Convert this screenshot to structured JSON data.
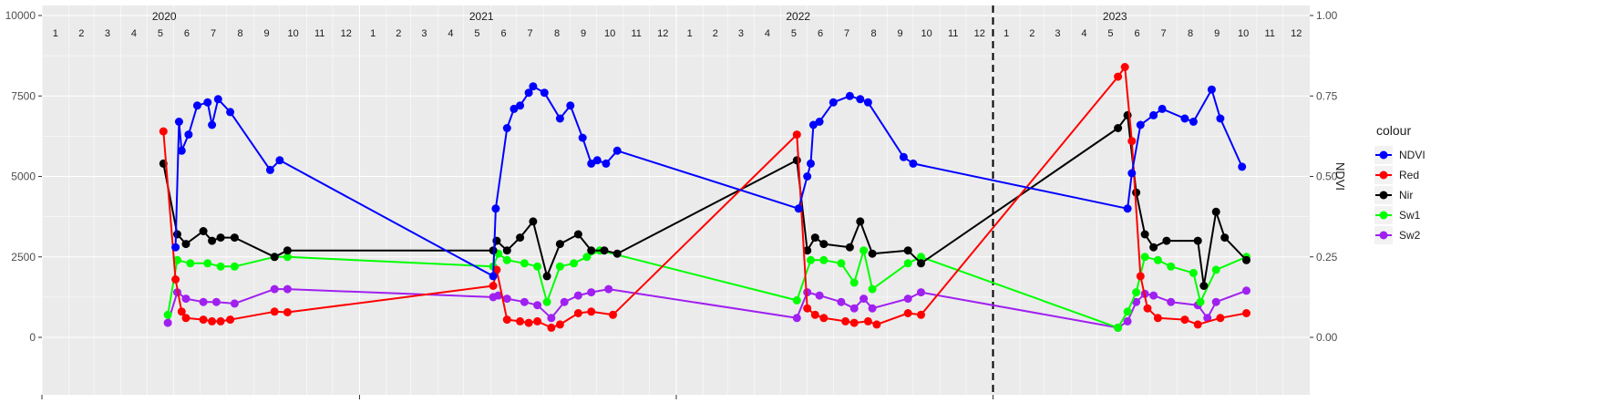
{
  "chart_data": {
    "type": "line",
    "title": "",
    "xlabel": "",
    "ylabel": "",
    "y2label": "NDVI",
    "ylim": [
      0,
      10000
    ],
    "y2lim": [
      0,
      1
    ],
    "y_ticks": [
      "0",
      "2500",
      "5000",
      "7500",
      "10000"
    ],
    "y2_ticks": [
      "0.00",
      "0.25",
      "0.50",
      "0.75",
      "1.00"
    ],
    "x_range": [
      "2020-01-01",
      "2023-12-31"
    ],
    "year_labels": [
      {
        "year": 2020,
        "text": "2020"
      },
      {
        "year": 2021,
        "text": "2021"
      },
      {
        "year": 2022,
        "text": "2022"
      },
      {
        "year": 2023,
        "text": "2023"
      }
    ],
    "month_labels": [
      "1",
      "2",
      "3",
      "4",
      "5",
      "6",
      "7",
      "8",
      "9",
      "10",
      "11",
      "12"
    ],
    "vline_date": "2023-01-01",
    "grid": true,
    "legend": {
      "title": "colour",
      "position": "right"
    },
    "series": [
      {
        "name": "NDVI",
        "color": "#0000ff",
        "axis": "right",
        "points": [
          [
            "2020-06-03",
            0.28
          ],
          [
            "2020-06-07",
            0.67
          ],
          [
            "2020-06-10",
            0.58
          ],
          [
            "2020-06-18",
            0.63
          ],
          [
            "2020-06-28",
            0.72
          ],
          [
            "2020-07-10",
            0.73
          ],
          [
            "2020-07-15",
            0.66
          ],
          [
            "2020-07-22",
            0.74
          ],
          [
            "2020-08-05",
            0.7
          ],
          [
            "2020-09-20",
            0.52
          ],
          [
            "2020-10-01",
            0.55
          ],
          [
            "2021-06-04",
            0.19
          ],
          [
            "2021-06-07",
            0.4
          ],
          [
            "2021-06-20",
            0.65
          ],
          [
            "2021-06-28",
            0.71
          ],
          [
            "2021-07-05",
            0.72
          ],
          [
            "2021-07-15",
            0.76
          ],
          [
            "2021-07-20",
            0.78
          ],
          [
            "2021-08-02",
            0.76
          ],
          [
            "2021-08-20",
            0.68
          ],
          [
            "2021-09-01",
            0.72
          ],
          [
            "2021-09-15",
            0.62
          ],
          [
            "2021-09-25",
            0.54
          ],
          [
            "2021-10-02",
            0.55
          ],
          [
            "2021-10-12",
            0.54
          ],
          [
            "2021-10-25",
            0.58
          ],
          [
            "2022-05-22",
            0.4
          ],
          [
            "2022-06-01",
            0.5
          ],
          [
            "2022-06-05",
            0.54
          ],
          [
            "2022-06-08",
            0.66
          ],
          [
            "2022-06-15",
            0.67
          ],
          [
            "2022-07-01",
            0.73
          ],
          [
            "2022-07-20",
            0.75
          ],
          [
            "2022-08-01",
            0.74
          ],
          [
            "2022-08-10",
            0.73
          ],
          [
            "2022-09-20",
            0.56
          ],
          [
            "2022-10-01",
            0.54
          ],
          [
            "2023-06-05",
            0.4
          ],
          [
            "2023-06-10",
            0.51
          ],
          [
            "2023-06-20",
            0.66
          ],
          [
            "2023-07-05",
            0.69
          ],
          [
            "2023-07-15",
            0.71
          ],
          [
            "2023-08-10",
            0.68
          ],
          [
            "2023-08-20",
            0.67
          ],
          [
            "2023-09-10",
            0.77
          ],
          [
            "2023-09-20",
            0.68
          ],
          [
            "2023-10-15",
            0.53
          ]
        ]
      },
      {
        "name": "Red",
        "color": "#ff0000",
        "axis": "left",
        "points": [
          [
            "2020-05-20",
            6400
          ],
          [
            "2020-06-03",
            1800
          ],
          [
            "2020-06-10",
            800
          ],
          [
            "2020-06-15",
            600
          ],
          [
            "2020-07-05",
            550
          ],
          [
            "2020-07-15",
            500
          ],
          [
            "2020-07-25",
            500
          ],
          [
            "2020-08-05",
            550
          ],
          [
            "2020-09-25",
            800
          ],
          [
            "2020-10-10",
            780
          ],
          [
            "2021-06-04",
            1600
          ],
          [
            "2021-06-08",
            2100
          ],
          [
            "2021-06-20",
            550
          ],
          [
            "2021-07-05",
            500
          ],
          [
            "2021-07-15",
            450
          ],
          [
            "2021-07-25",
            500
          ],
          [
            "2021-08-10",
            300
          ],
          [
            "2021-08-20",
            400
          ],
          [
            "2021-09-10",
            750
          ],
          [
            "2021-09-25",
            800
          ],
          [
            "2021-10-20",
            700
          ],
          [
            "2022-05-20",
            6300
          ],
          [
            "2022-06-01",
            900
          ],
          [
            "2022-06-10",
            700
          ],
          [
            "2022-06-20",
            600
          ],
          [
            "2022-07-15",
            500
          ],
          [
            "2022-07-25",
            450
          ],
          [
            "2022-08-10",
            500
          ],
          [
            "2022-08-20",
            400
          ],
          [
            "2022-09-25",
            750
          ],
          [
            "2022-10-10",
            700
          ],
          [
            "2023-05-25",
            8100
          ],
          [
            "2023-06-02",
            8400
          ],
          [
            "2023-06-10",
            6100
          ],
          [
            "2023-06-20",
            1900
          ],
          [
            "2023-06-28",
            900
          ],
          [
            "2023-07-10",
            600
          ],
          [
            "2023-08-10",
            550
          ],
          [
            "2023-08-25",
            400
          ],
          [
            "2023-09-20",
            600
          ],
          [
            "2023-10-20",
            750
          ]
        ]
      },
      {
        "name": "Nir",
        "color": "#000000",
        "axis": "left",
        "points": [
          [
            "2020-05-20",
            5400
          ],
          [
            "2020-06-05",
            3200
          ],
          [
            "2020-06-15",
            2900
          ],
          [
            "2020-07-05",
            3300
          ],
          [
            "2020-07-15",
            3000
          ],
          [
            "2020-07-25",
            3100
          ],
          [
            "2020-08-10",
            3100
          ],
          [
            "2020-09-25",
            2500
          ],
          [
            "2020-10-10",
            2700
          ],
          [
            "2021-06-04",
            2700
          ],
          [
            "2021-06-08",
            3000
          ],
          [
            "2021-06-20",
            2700
          ],
          [
            "2021-07-05",
            3100
          ],
          [
            "2021-07-20",
            3600
          ],
          [
            "2021-08-05",
            1900
          ],
          [
            "2021-08-20",
            2900
          ],
          [
            "2021-09-10",
            3200
          ],
          [
            "2021-09-25",
            2700
          ],
          [
            "2021-10-10",
            2700
          ],
          [
            "2021-10-25",
            2600
          ],
          [
            "2022-05-20",
            5500
          ],
          [
            "2022-06-01",
            2700
          ],
          [
            "2022-06-10",
            3100
          ],
          [
            "2022-06-20",
            2900
          ],
          [
            "2022-07-20",
            2800
          ],
          [
            "2022-08-01",
            3600
          ],
          [
            "2022-08-15",
            2600
          ],
          [
            "2022-09-25",
            2700
          ],
          [
            "2022-10-10",
            2300
          ],
          [
            "2023-05-25",
            6500
          ],
          [
            "2023-06-05",
            6900
          ],
          [
            "2023-06-15",
            4500
          ],
          [
            "2023-06-25",
            3200
          ],
          [
            "2023-07-05",
            2800
          ],
          [
            "2023-07-20",
            3000
          ],
          [
            "2023-08-25",
            3000
          ],
          [
            "2023-09-01",
            1600
          ],
          [
            "2023-09-15",
            3900
          ],
          [
            "2023-09-25",
            3100
          ],
          [
            "2023-10-20",
            2400
          ]
        ]
      },
      {
        "name": "Sw1",
        "color": "#00ff00",
        "axis": "left",
        "points": [
          [
            "2020-05-25",
            700
          ],
          [
            "2020-06-05",
            2400
          ],
          [
            "2020-06-20",
            2300
          ],
          [
            "2020-07-10",
            2300
          ],
          [
            "2020-07-25",
            2200
          ],
          [
            "2020-08-10",
            2200
          ],
          [
            "2020-09-25",
            2500
          ],
          [
            "2020-10-10",
            2500
          ],
          [
            "2021-06-04",
            2200
          ],
          [
            "2021-06-10",
            2600
          ],
          [
            "2021-06-20",
            2400
          ],
          [
            "2021-07-10",
            2300
          ],
          [
            "2021-07-25",
            2200
          ],
          [
            "2021-08-05",
            1100
          ],
          [
            "2021-08-20",
            2200
          ],
          [
            "2021-09-05",
            2300
          ],
          [
            "2021-09-20",
            2500
          ],
          [
            "2021-10-05",
            2700
          ],
          [
            "2022-05-20",
            1150
          ],
          [
            "2022-06-05",
            2400
          ],
          [
            "2022-06-20",
            2400
          ],
          [
            "2022-07-10",
            2300
          ],
          [
            "2022-07-25",
            1700
          ],
          [
            "2022-08-05",
            2700
          ],
          [
            "2022-08-15",
            1500
          ],
          [
            "2022-09-25",
            2300
          ],
          [
            "2022-10-10",
            2500
          ],
          [
            "2023-05-25",
            300
          ],
          [
            "2023-06-05",
            800
          ],
          [
            "2023-06-15",
            1400
          ],
          [
            "2023-06-25",
            2500
          ],
          [
            "2023-07-10",
            2400
          ],
          [
            "2023-07-25",
            2200
          ],
          [
            "2023-08-20",
            2000
          ],
          [
            "2023-08-28",
            1100
          ],
          [
            "2023-09-15",
            2100
          ],
          [
            "2023-10-20",
            2500
          ]
        ]
      },
      {
        "name": "Sw2",
        "color": "#a020f0",
        "axis": "left",
        "points": [
          [
            "2020-05-25",
            450
          ],
          [
            "2020-06-05",
            1400
          ],
          [
            "2020-06-15",
            1200
          ],
          [
            "2020-07-05",
            1100
          ],
          [
            "2020-07-20",
            1100
          ],
          [
            "2020-08-10",
            1050
          ],
          [
            "2020-09-25",
            1500
          ],
          [
            "2020-10-10",
            1500
          ],
          [
            "2021-06-04",
            1250
          ],
          [
            "2021-06-10",
            1300
          ],
          [
            "2021-06-20",
            1200
          ],
          [
            "2021-07-10",
            1100
          ],
          [
            "2021-07-25",
            1000
          ],
          [
            "2021-08-10",
            600
          ],
          [
            "2021-08-25",
            1100
          ],
          [
            "2021-09-10",
            1300
          ],
          [
            "2021-09-25",
            1400
          ],
          [
            "2021-10-15",
            1500
          ],
          [
            "2022-05-20",
            600
          ],
          [
            "2022-06-01",
            1400
          ],
          [
            "2022-06-15",
            1300
          ],
          [
            "2022-07-10",
            1100
          ],
          [
            "2022-07-25",
            900
          ],
          [
            "2022-08-05",
            1200
          ],
          [
            "2022-08-15",
            900
          ],
          [
            "2022-09-25",
            1200
          ],
          [
            "2022-10-10",
            1400
          ],
          [
            "2023-05-25",
            300
          ],
          [
            "2023-06-05",
            500
          ],
          [
            "2023-06-15",
            1100
          ],
          [
            "2023-06-25",
            1350
          ],
          [
            "2023-07-05",
            1300
          ],
          [
            "2023-07-25",
            1100
          ],
          [
            "2023-08-25",
            1000
          ],
          [
            "2023-09-05",
            600
          ],
          [
            "2023-09-15",
            1100
          ],
          [
            "2023-10-20",
            1450
          ]
        ]
      }
    ]
  }
}
